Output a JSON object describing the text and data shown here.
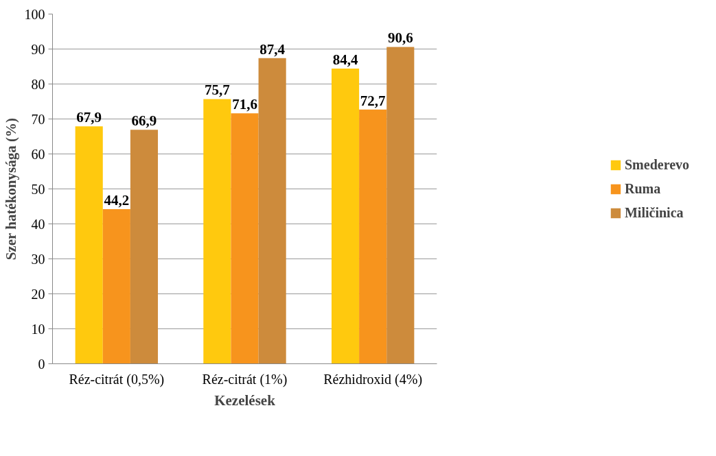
{
  "chart_data": {
    "type": "bar",
    "xlabel": "Kezelések",
    "ylabel": "Szer hatékonysága (%)",
    "categories": [
      "Réz-citrát (0,5%)",
      "Réz-citrát (1%)",
      "Rézhidroxid (4%)"
    ],
    "series": [
      {
        "name": "Smederevo",
        "color": "#ffc90e",
        "values": [
          67.9,
          75.7,
          84.4
        ],
        "value_labels": [
          "67,9",
          "75,7",
          "84,4"
        ]
      },
      {
        "name": "Ruma",
        "color": "#f7941d",
        "values": [
          44.2,
          71.6,
          72.7
        ],
        "value_labels": [
          "44,2",
          "71,6",
          "72,7"
        ]
      },
      {
        "name": "Miličinica",
        "color": "#cd8b3c",
        "values": [
          66.9,
          87.4,
          90.6
        ],
        "value_labels": [
          "66,9",
          "87,4",
          "90,6"
        ]
      }
    ],
    "ylim": [
      0,
      100
    ],
    "yticks": [
      0,
      10,
      20,
      30,
      40,
      50,
      60,
      70,
      80,
      90,
      100
    ],
    "grid": "y",
    "legend": "right"
  }
}
